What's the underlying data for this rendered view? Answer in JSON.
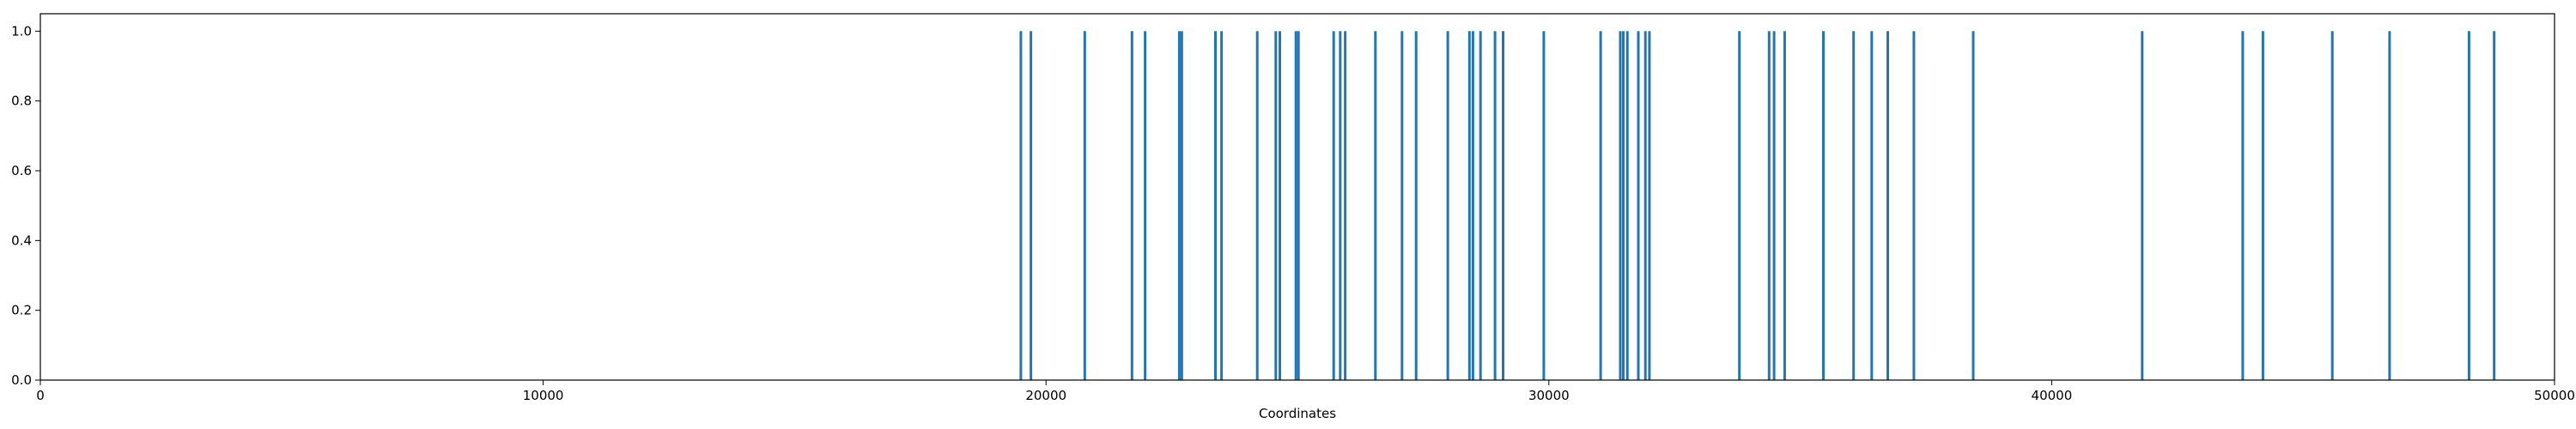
{
  "chart_data": {
    "type": "bar",
    "title": "",
    "xlabel": "Coordinates",
    "ylabel": "",
    "xlim": [
      0,
      50000
    ],
    "ylim": [
      0,
      1.05
    ],
    "grid": false,
    "bar_color": "#1f77b4",
    "xticks": [
      "0",
      "10000",
      "20000",
      "30000",
      "40000",
      "50000"
    ],
    "xtick_values": [
      0,
      10000,
      20000,
      30000,
      40000,
      50000
    ],
    "yticks": [
      "0.0",
      "0.2",
      "0.4",
      "0.6",
      "0.8",
      "1.0"
    ],
    "ytick_values": [
      0,
      0.2,
      0.4,
      0.6,
      0.8,
      1.0
    ],
    "x": [
      19500,
      19700,
      20770,
      21710,
      21970,
      22650,
      22700,
      23370,
      23490,
      24200,
      24570,
      24650,
      24970,
      25020,
      25720,
      25850,
      25950,
      26550,
      27080,
      27360,
      27990,
      28420,
      28490,
      28640,
      28930,
      29090,
      29900,
      31030,
      31420,
      31480,
      31560,
      31780,
      31920,
      32000,
      33790,
      34380,
      34480,
      34690,
      35460,
      36060,
      36420,
      36740,
      37260,
      38440,
      41800,
      43800,
      44200,
      45580,
      46720,
      48300,
      48800
    ],
    "values": [
      1,
      1,
      1,
      1,
      1,
      1,
      1,
      1,
      1,
      1,
      1,
      1,
      1,
      1,
      1,
      1,
      1,
      1,
      1,
      1,
      1,
      1,
      1,
      1,
      1,
      1,
      1,
      1,
      1,
      1,
      1,
      1,
      1,
      1,
      1,
      1,
      1,
      1,
      1,
      1,
      1,
      1,
      1,
      1,
      1,
      1,
      1,
      1,
      1,
      1,
      1
    ]
  }
}
